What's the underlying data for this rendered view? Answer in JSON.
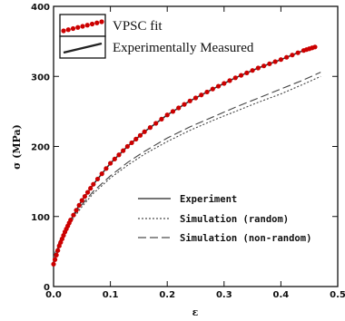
{
  "chart_data": {
    "type": "line",
    "title": "",
    "xlabel": "ε",
    "ylabel": "σ (MPa)",
    "xlim": [
      0.0,
      0.5
    ],
    "ylim": [
      0,
      400
    ],
    "x_ticks": [
      "0.0",
      "0.1",
      "0.2",
      "0.3",
      "0.4",
      "0.5"
    ],
    "y_ticks": [
      "0",
      "100",
      "200",
      "300",
      "400"
    ],
    "grid": false,
    "legends": {
      "top-left": [
        "VPSC fit",
        "Experimentally Measured"
      ],
      "bottom-right": [
        "Experiment",
        "Simulation (random)",
        "Simulation (non-random)"
      ]
    },
    "series": [
      {
        "name": "VPSC fit",
        "style": "red-dots",
        "color": "#cc0000",
        "x": [
          0.0,
          0.01,
          0.02,
          0.03,
          0.05,
          0.07,
          0.1,
          0.13,
          0.16,
          0.2,
          0.24,
          0.28,
          0.32,
          0.36,
          0.4,
          0.44,
          0.46
        ],
        "y": [
          32,
          58,
          78,
          95,
          123,
          146,
          176,
          200,
          221,
          245,
          265,
          282,
          298,
          312,
          324,
          337,
          342
        ]
      },
      {
        "name": "Experimentally Measured",
        "style": "solid",
        "color": "#333333",
        "x": [
          0.0,
          0.01,
          0.02,
          0.03,
          0.05,
          0.07,
          0.1,
          0.13,
          0.16,
          0.2,
          0.24,
          0.28,
          0.32,
          0.36,
          0.4,
          0.44,
          0.46
        ],
        "y": [
          32,
          58,
          78,
          95,
          123,
          146,
          176,
          200,
          221,
          245,
          265,
          282,
          298,
          312,
          324,
          337,
          342
        ]
      },
      {
        "name": "Simulation (random)",
        "style": "dotted",
        "color": "#444444",
        "x": [
          0.0,
          0.01,
          0.02,
          0.03,
          0.05,
          0.07,
          0.1,
          0.13,
          0.16,
          0.2,
          0.24,
          0.28,
          0.32,
          0.36,
          0.4,
          0.44,
          0.47
        ],
        "y": [
          40,
          62,
          78,
          92,
          114,
          133,
          155,
          173,
          189,
          207,
          223,
          237,
          250,
          263,
          275,
          289,
          300
        ]
      },
      {
        "name": "Simulation (non-random)",
        "style": "dashed",
        "color": "#444444",
        "x": [
          0.0,
          0.01,
          0.02,
          0.03,
          0.05,
          0.07,
          0.1,
          0.13,
          0.16,
          0.2,
          0.24,
          0.28,
          0.32,
          0.36,
          0.4,
          0.44,
          0.47
        ],
        "y": [
          42,
          64,
          81,
          95,
          117,
          136,
          158,
          177,
          193,
          212,
          228,
          242,
          256,
          269,
          282,
          295,
          306
        ]
      }
    ]
  }
}
